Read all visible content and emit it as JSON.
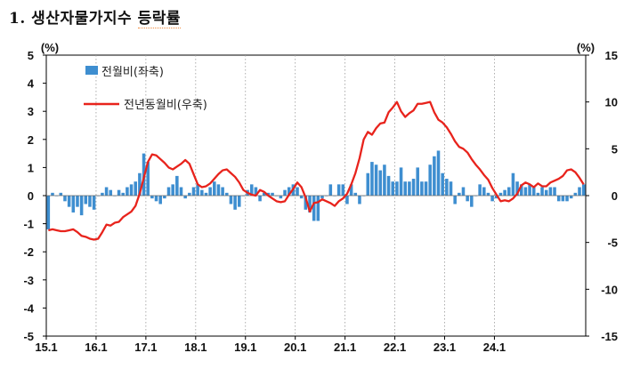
{
  "title": {
    "number": "1.",
    "text": "생산자물가지수",
    "text2": "등락률"
  },
  "chart_data": {
    "type": "bar+line",
    "title": "생산자물가지수 등락률",
    "left_axis": {
      "unit_label": "(%)",
      "min": -5,
      "max": 5,
      "ticks": [
        5,
        4,
        3,
        2,
        1,
        0,
        -1,
        -2,
        -3,
        -4,
        -5
      ]
    },
    "right_axis": {
      "unit_label": "(%)",
      "min": -15,
      "max": 15,
      "ticks": [
        15,
        10,
        5,
        0,
        -5,
        -10,
        -15
      ]
    },
    "x_tick_labels": [
      "15.1",
      "16.1",
      "17.1",
      "18.1",
      "19.1",
      "20.1",
      "21.1",
      "22.1",
      "23.1",
      "24.1"
    ],
    "grid": "vertical dotted at each January",
    "legend_position": "top-left",
    "series": [
      {
        "name": "전월비(좌축)",
        "type": "bar",
        "axis": "left",
        "color": "#3e8ed0",
        "values": [
          -1.2,
          0.1,
          0.0,
          0.1,
          -0.2,
          -0.4,
          -0.6,
          -0.4,
          -0.7,
          -0.3,
          -0.4,
          -0.5,
          0.0,
          0.1,
          0.3,
          0.2,
          0.0,
          0.2,
          0.1,
          0.3,
          0.4,
          0.5,
          0.8,
          1.5,
          1.2,
          -0.1,
          -0.2,
          -0.3,
          -0.1,
          0.3,
          0.4,
          0.7,
          0.3,
          -0.1,
          0.1,
          0.3,
          0.4,
          0.2,
          0.1,
          0.3,
          0.5,
          0.4,
          0.3,
          0.1,
          -0.3,
          -0.5,
          -0.4,
          0.0,
          0.2,
          0.4,
          0.3,
          -0.2,
          0.1,
          0.1,
          0.1,
          0.0,
          -0.1,
          0.2,
          0.3,
          0.4,
          0.3,
          -0.1,
          -0.5,
          -0.6,
          -0.9,
          -0.9,
          -0.1,
          0.0,
          0.4,
          0.0,
          0.4,
          0.4,
          -0.3,
          0.4,
          0.1,
          -0.3,
          0.0,
          0.8,
          1.2,
          1.1,
          0.9,
          1.1,
          0.7,
          0.5,
          0.5,
          1.0,
          0.5,
          0.5,
          0.6,
          1.0,
          0.5,
          0.5,
          1.1,
          1.4,
          1.6,
          0.8,
          0.6,
          0.5,
          -0.3,
          0.1,
          0.3,
          -0.2,
          -0.4,
          0.0,
          0.4,
          0.3,
          0.1,
          -0.2,
          -0.1,
          0.1,
          0.2,
          0.3,
          0.8,
          0.5,
          0.4,
          0.3,
          0.4,
          0.3,
          0.1,
          0.3,
          0.2,
          0.3,
          0.3,
          -0.2,
          -0.2,
          -0.2,
          -0.1,
          0.1,
          0.3,
          0.4
        ]
      },
      {
        "name": "전년동월비(우축)",
        "type": "line",
        "axis": "right",
        "color": "#e8231c",
        "values": [
          -3.7,
          -3.6,
          -3.7,
          -3.8,
          -3.8,
          -3.7,
          -3.6,
          -3.9,
          -4.3,
          -4.4,
          -4.6,
          -4.7,
          -4.6,
          -3.9,
          -3.1,
          -3.2,
          -2.9,
          -2.8,
          -2.3,
          -2.0,
          -1.7,
          -1.1,
          0.2,
          1.9,
          3.6,
          4.4,
          4.3,
          3.9,
          3.5,
          3.0,
          2.8,
          3.1,
          3.4,
          3.8,
          3.4,
          2.3,
          1.2,
          0.9,
          1.0,
          1.3,
          1.8,
          2.3,
          2.7,
          2.8,
          2.4,
          2.0,
          1.4,
          0.6,
          0.3,
          0.1,
          0.0,
          0.6,
          0.4,
          0.0,
          -0.3,
          -0.6,
          -0.7,
          -0.6,
          0.1,
          0.7,
          1.4,
          0.9,
          -0.2,
          -1.7,
          -0.8,
          -0.7,
          -0.4,
          -0.6,
          -0.8,
          -1.1,
          -0.6,
          -0.3,
          0.2,
          1.2,
          2.4,
          4.0,
          6.0,
          6.8,
          6.5,
          7.2,
          7.7,
          7.8,
          8.9,
          9.4,
          10.0,
          9.0,
          8.4,
          8.8,
          9.1,
          9.8,
          9.8,
          9.9,
          10.0,
          8.9,
          8.1,
          7.8,
          7.3,
          6.6,
          5.8,
          5.2,
          5.0,
          4.6,
          3.9,
          3.3,
          2.8,
          2.2,
          1.7,
          0.8,
          0.1,
          -0.6,
          -0.5,
          -0.6,
          -0.3,
          0.2,
          1.1,
          1.4,
          1.2,
          0.9,
          1.3,
          1.0,
          1.0,
          1.4,
          1.6,
          1.8,
          2.1,
          2.7,
          2.8,
          2.5,
          1.9,
          1.2
        ]
      }
    ]
  }
}
